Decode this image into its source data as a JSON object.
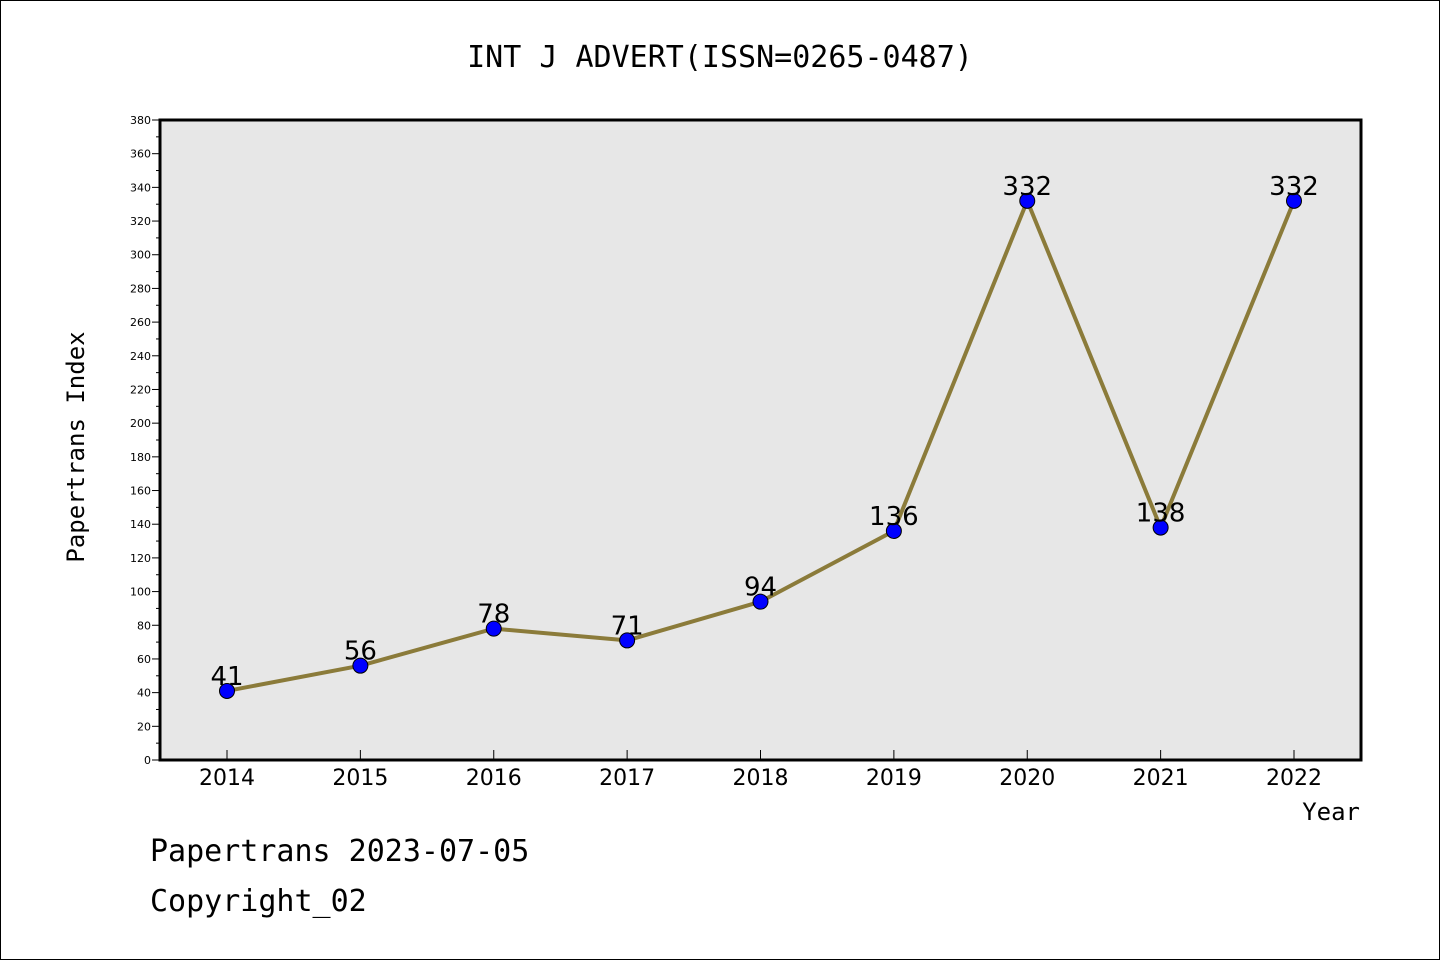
{
  "footer": {
    "line1": "Papertrans 2023-07-05",
    "line2": "Copyright_02"
  },
  "colors": {
    "plot_background": "#e7e7e7",
    "line": "#8b7b3a",
    "marker": "#0000ff",
    "axis": "#000000"
  },
  "chart_data": {
    "type": "line",
    "title": "INT J ADVERT(ISSN=0265-0487)",
    "xlabel": "Year",
    "ylabel": "Papertrans Index",
    "categories": [
      "2014",
      "2015",
      "2016",
      "2017",
      "2018",
      "2019",
      "2020",
      "2021",
      "2022"
    ],
    "values": [
      41,
      56,
      78,
      71,
      94,
      136,
      332,
      138,
      332
    ],
    "data_labels": [
      "41",
      "56",
      "78",
      "71",
      "94",
      "136",
      "332",
      "138",
      "332"
    ],
    "ylim": [
      0,
      380
    ],
    "y_ticks": [
      0,
      20,
      40,
      60,
      80,
      100,
      120,
      140,
      160,
      180,
      200,
      220,
      240,
      260,
      280,
      300,
      320,
      340,
      360,
      380
    ],
    "grid": false,
    "legend": "none",
    "marker": "circle"
  }
}
